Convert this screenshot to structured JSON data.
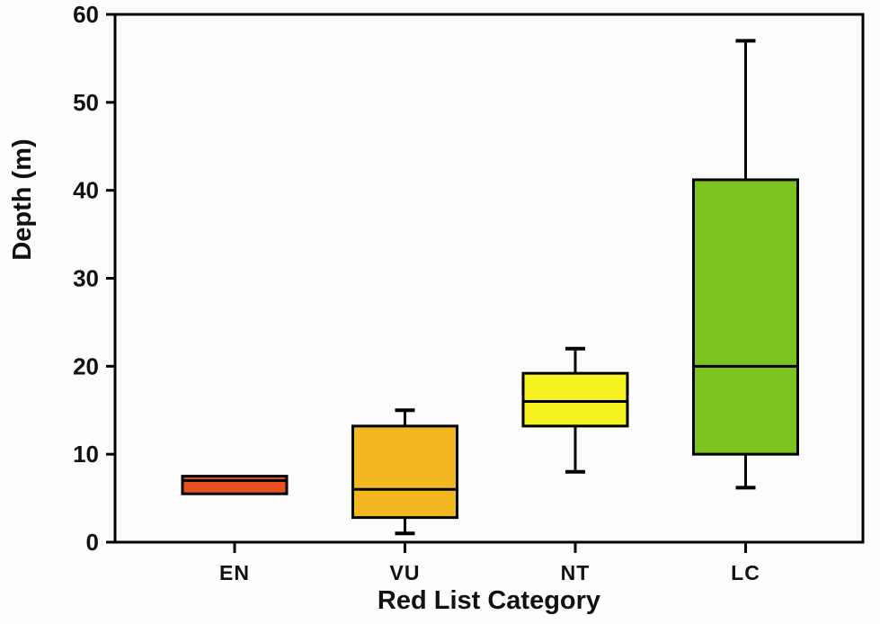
{
  "figure": {
    "background": "#fdfdfd",
    "axis_color": "#000000"
  },
  "chart_data": {
    "type": "boxplot",
    "title": "",
    "xlabel": "Red List Category",
    "ylabel": "Depth (m)",
    "ylim": [
      0,
      60
    ],
    "yticks": [
      0,
      10,
      20,
      30,
      40,
      50,
      60
    ],
    "grid": false,
    "legend": "none",
    "categories": [
      "EN",
      "VU",
      "NT",
      "LC"
    ],
    "series": [
      {
        "category": "EN",
        "min": 5.5,
        "q1": 5.5,
        "median": 7,
        "q3": 7.5,
        "max": 7.5,
        "fill": "#e8511f"
      },
      {
        "category": "VU",
        "min": 1,
        "q1": 2.8,
        "median": 6,
        "q3": 13.2,
        "max": 15,
        "fill": "#f3b722"
      },
      {
        "category": "NT",
        "min": 8,
        "q1": 13.2,
        "median": 16,
        "q3": 19.2,
        "max": 22,
        "fill": "#f6f321"
      },
      {
        "category": "LC",
        "min": 6.2,
        "q1": 10,
        "median": 20,
        "q3": 41.2,
        "max": 57,
        "fill": "#7cc322"
      }
    ]
  }
}
